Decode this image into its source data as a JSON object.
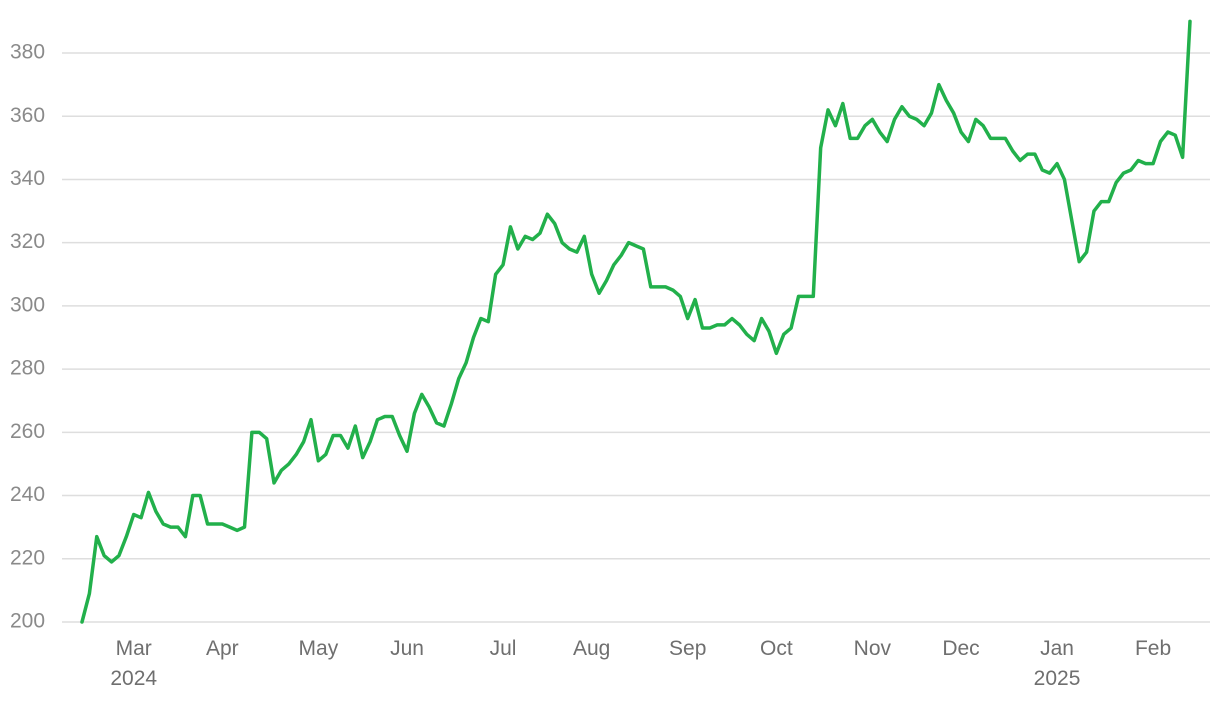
{
  "chart_data": {
    "type": "line",
    "categories": [
      null,
      null,
      null,
      null,
      null,
      null,
      null,
      "Mar\n2024",
      null,
      null,
      null,
      null,
      null,
      null,
      null,
      null,
      null,
      null,
      null,
      "Apr",
      null,
      null,
      null,
      null,
      null,
      null,
      null,
      null,
      null,
      null,
      null,
      null,
      "May",
      null,
      null,
      null,
      null,
      null,
      null,
      null,
      null,
      null,
      null,
      null,
      "Jun",
      null,
      null,
      null,
      null,
      null,
      null,
      null,
      null,
      null,
      null,
      null,
      null,
      "Jul",
      null,
      null,
      null,
      null,
      null,
      null,
      null,
      null,
      null,
      null,
      null,
      "Aug",
      null,
      null,
      null,
      null,
      null,
      null,
      null,
      null,
      null,
      null,
      null,
      null,
      "Sep",
      null,
      null,
      null,
      null,
      null,
      null,
      null,
      null,
      null,
      null,
      null,
      "Oct",
      null,
      null,
      null,
      null,
      null,
      null,
      null,
      null,
      null,
      null,
      null,
      null,
      "Nov",
      null,
      null,
      null,
      null,
      null,
      null,
      null,
      null,
      null,
      null,
      null,
      "Dec",
      null,
      null,
      null,
      null,
      null,
      null,
      null,
      null,
      null,
      null,
      null,
      null,
      "Jan\n2025",
      null,
      null,
      null,
      null,
      null,
      null,
      null,
      null,
      null,
      null,
      null,
      null,
      "Feb",
      null,
      null,
      null,
      null,
      null
    ],
    "values": [
      200,
      209,
      227,
      221,
      219,
      221,
      227,
      234,
      233,
      241,
      235,
      231,
      230,
      230,
      227,
      240,
      240,
      231,
      231,
      231,
      230,
      229,
      230,
      260,
      260,
      258,
      244,
      248,
      250,
      253,
      257,
      264,
      251,
      253,
      259,
      259,
      255,
      262,
      252,
      257,
      264,
      265,
      265,
      259,
      254,
      266,
      272,
      268,
      263,
      262,
      269,
      277,
      282,
      290,
      296,
      295,
      310,
      313,
      325,
      318,
      322,
      321,
      323,
      329,
      326,
      320,
      318,
      317,
      322,
      310,
      304,
      308,
      313,
      316,
      320,
      319,
      318,
      306,
      306,
      306,
      305,
      303,
      296,
      302,
      293,
      293,
      294,
      294,
      296,
      294,
      291,
      289,
      296,
      292,
      285,
      291,
      293,
      303,
      303,
      303,
      350,
      362,
      357,
      364,
      353,
      353,
      357,
      359,
      355,
      352,
      359,
      363,
      360,
      359,
      357,
      361,
      370,
      365,
      361,
      355,
      352,
      359,
      357,
      353,
      353,
      353,
      349,
      346,
      348,
      348,
      343,
      342,
      345,
      340,
      327,
      314,
      317,
      330,
      333,
      333,
      339,
      342,
      343,
      346,
      345,
      345,
      352,
      355,
      354,
      347,
      390
    ],
    "color": "#22b04b",
    "ylim": [
      200,
      390
    ],
    "yticks": [
      200,
      220,
      240,
      260,
      280,
      300,
      320,
      340,
      360,
      380
    ],
    "grid": true
  }
}
